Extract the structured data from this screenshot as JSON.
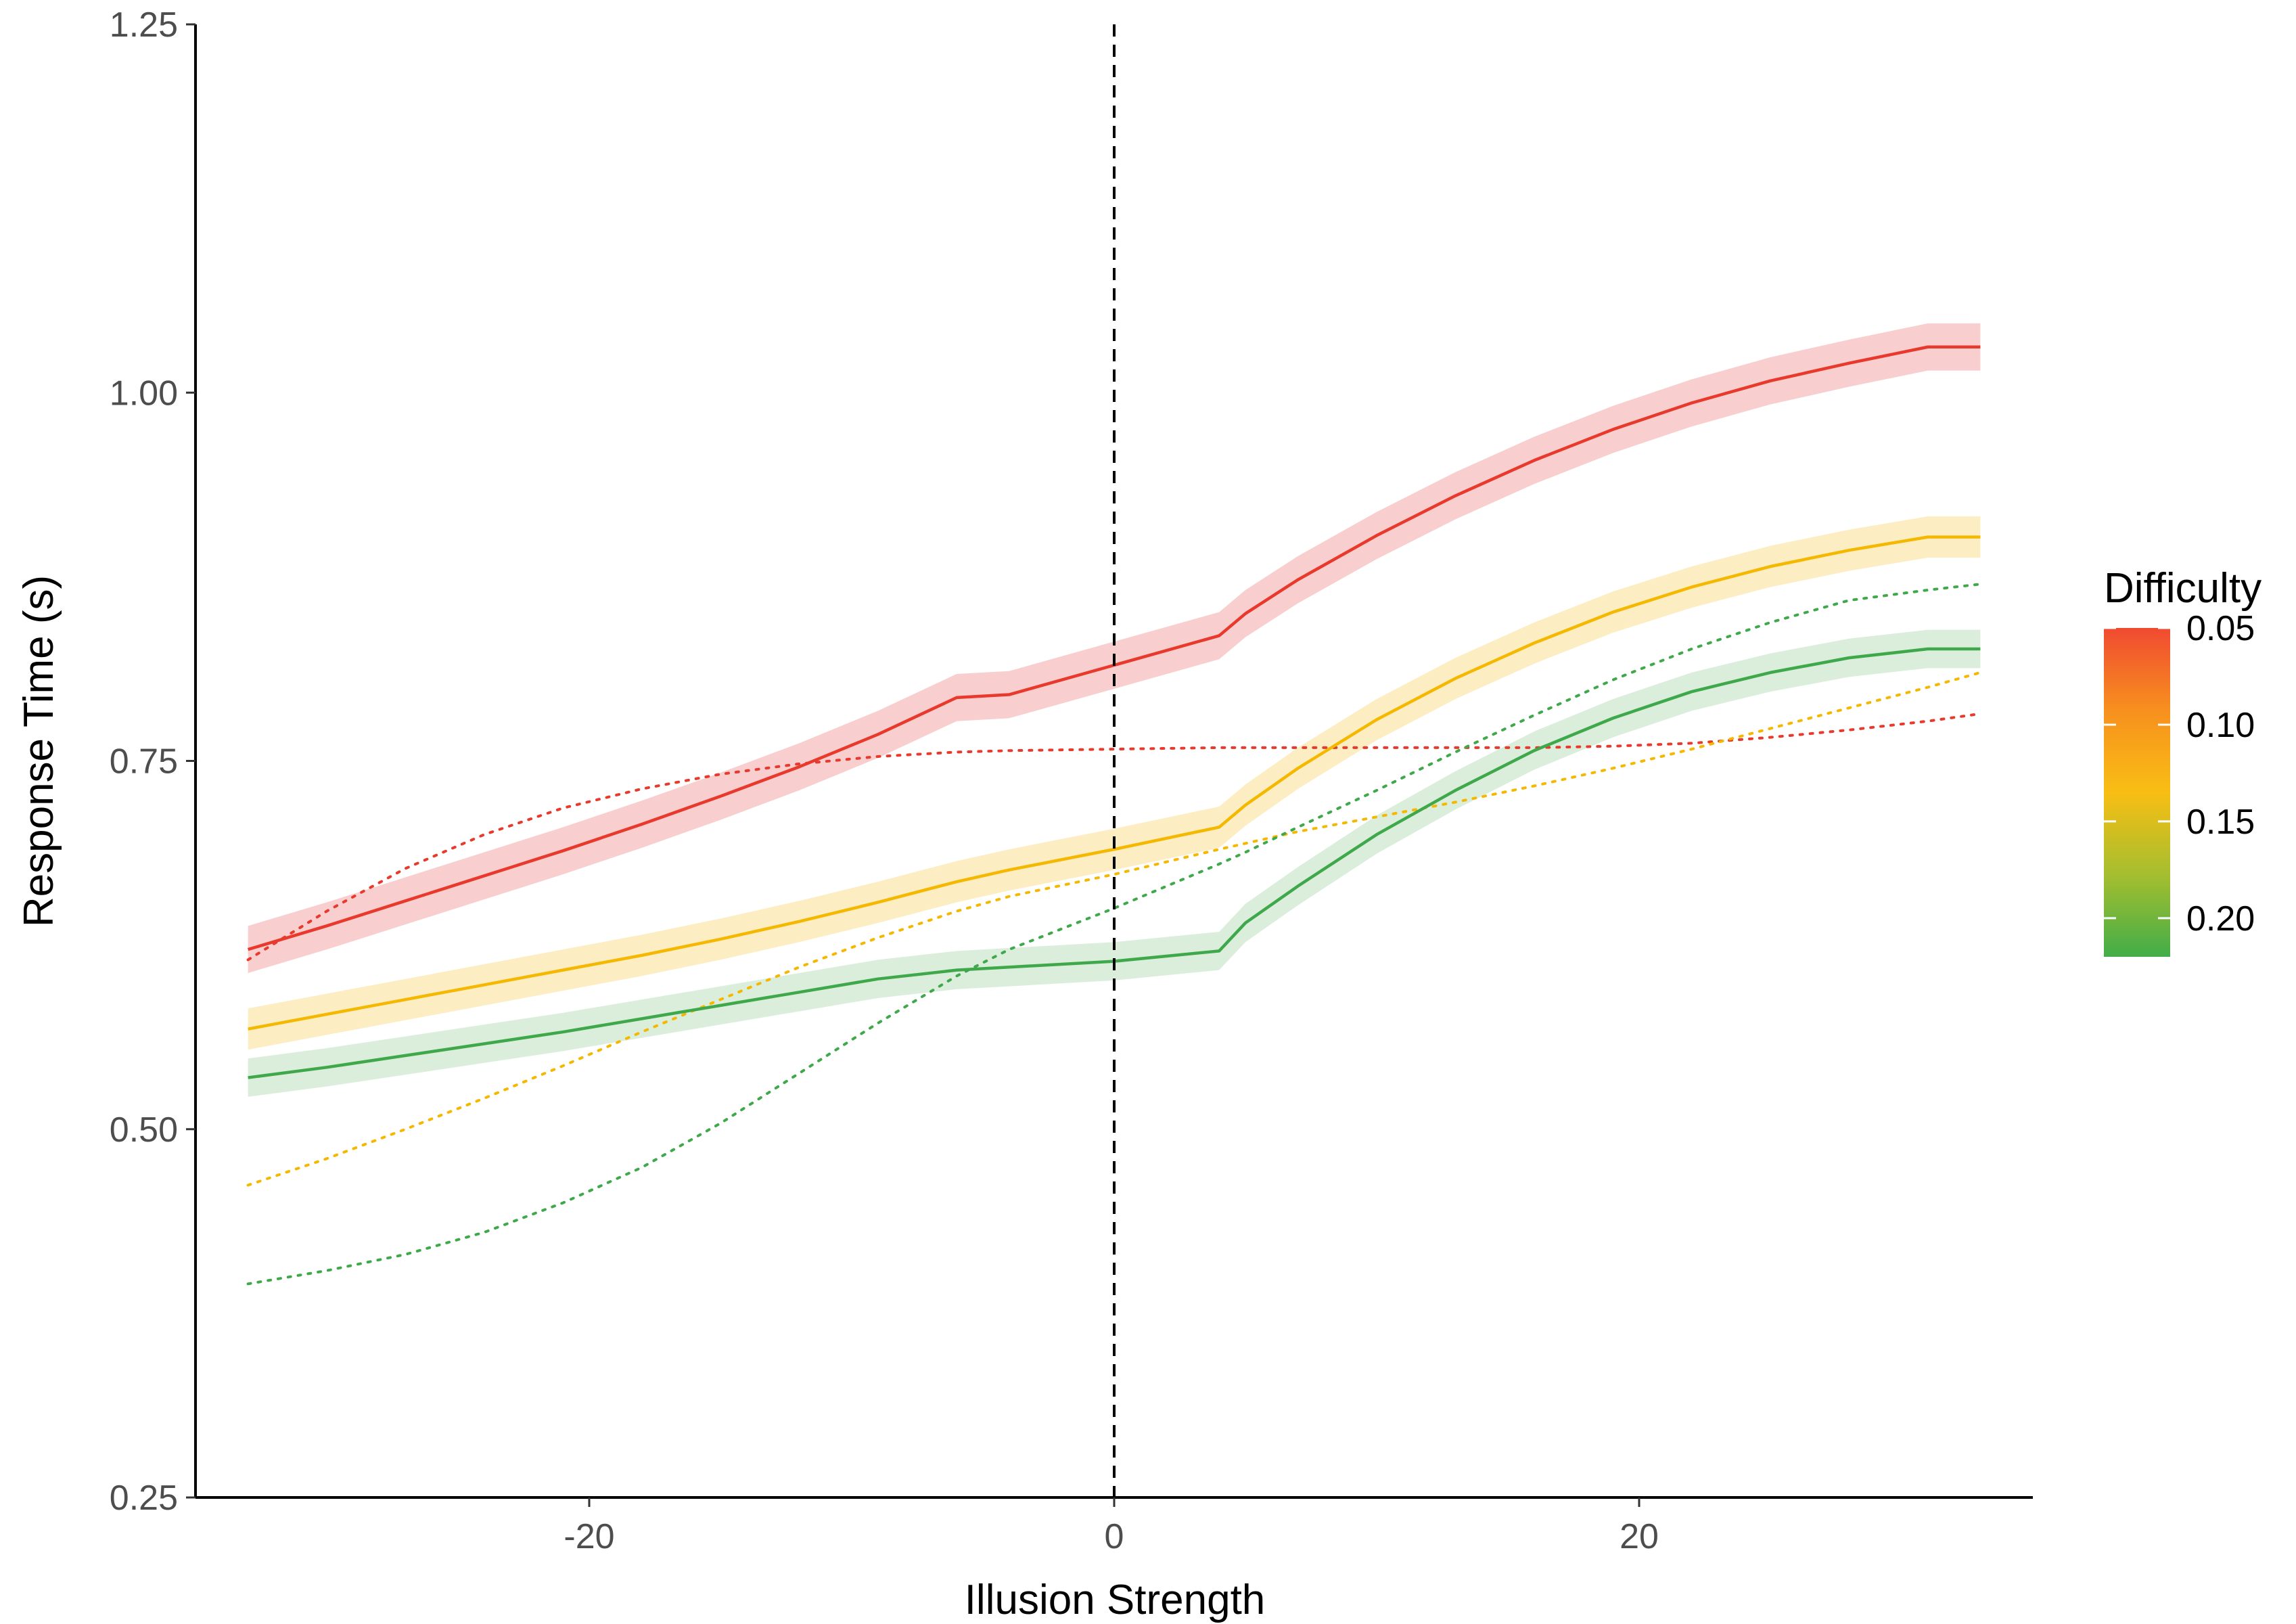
{
  "chart_data": {
    "type": "line",
    "title": "",
    "xlabel": "Illusion Strength",
    "ylabel": "Response Time (s)",
    "xlim": [
      -35,
      35
    ],
    "ylim": [
      0.25,
      1.25
    ],
    "x_ticks": [
      -20,
      0,
      20
    ],
    "x_tick_labels": [
      "-20",
      "0",
      "20"
    ],
    "y_ticks": [
      0.25,
      0.5,
      0.75,
      1.0,
      1.25
    ],
    "y_tick_labels": [
      "0.25",
      "0.50",
      "0.75",
      "1.00",
      "1.25"
    ],
    "grid": false,
    "reference_line": {
      "x": 0,
      "style": "dashed",
      "color": "#000000"
    },
    "legend": {
      "title": "Difficulty",
      "type": "colorbar",
      "placement": "right",
      "tick_labels": [
        "0.05",
        "0.10",
        "0.15",
        "0.20"
      ],
      "tick_values": [
        0.05,
        0.1,
        0.15,
        0.2
      ],
      "range": [
        0.05,
        0.22
      ],
      "colors": [
        "#F04A31",
        "#F7901E",
        "#F8BE14",
        "#A5BE2F",
        "#42AD48"
      ]
    },
    "x": [
      -33,
      -30,
      -27,
      -24,
      -21,
      -18,
      -15,
      -12,
      -9,
      -6,
      -4,
      0,
      4,
      5,
      7,
      10,
      13,
      16,
      19,
      22,
      25,
      28,
      31,
      33
    ],
    "series": [
      {
        "color": "#E8392C",
        "band_color": "#F7C6C6",
        "values": [
          0.622,
          0.638,
          0.655,
          0.672,
          0.689,
          0.707,
          0.726,
          0.746,
          0.768,
          0.793,
          0.795,
          0.815,
          0.835,
          0.85,
          0.873,
          0.903,
          0.93,
          0.954,
          0.975,
          0.993,
          1.008,
          1.02,
          1.031,
          1.031
        ],
        "band_half_width": 0.016,
        "reference_values": [
          0.615,
          0.648,
          0.677,
          0.7,
          0.718,
          0.731,
          0.741,
          0.748,
          0.753,
          0.756,
          0.757,
          0.758,
          0.759,
          0.759,
          0.759,
          0.759,
          0.759,
          0.759,
          0.76,
          0.762,
          0.766,
          0.771,
          0.777,
          0.782
        ]
      },
      {
        "color": "#F5B800",
        "band_color": "#FCEAB8",
        "values": [
          0.568,
          0.578,
          0.588,
          0.598,
          0.608,
          0.618,
          0.629,
          0.641,
          0.654,
          0.668,
          0.676,
          0.69,
          0.705,
          0.72,
          0.745,
          0.778,
          0.806,
          0.83,
          0.851,
          0.868,
          0.882,
          0.893,
          0.902,
          0.902
        ],
        "band_half_width": 0.014,
        "reference_values": [
          0.462,
          0.48,
          0.5,
          0.521,
          0.543,
          0.566,
          0.588,
          0.61,
          0.63,
          0.648,
          0.658,
          0.673,
          0.69,
          0.694,
          0.702,
          0.712,
          0.722,
          0.733,
          0.745,
          0.758,
          0.772,
          0.786,
          0.8,
          0.81
        ]
      },
      {
        "color": "#3FA84A",
        "band_color": "#D5EBD6",
        "values": [
          0.535,
          0.542,
          0.55,
          0.558,
          0.566,
          0.575,
          0.584,
          0.593,
          0.602,
          0.608,
          0.61,
          0.614,
          0.621,
          0.64,
          0.665,
          0.7,
          0.73,
          0.757,
          0.779,
          0.797,
          0.81,
          0.82,
          0.826,
          0.826
        ],
        "band_half_width": 0.013,
        "reference_values": [
          0.395,
          0.404,
          0.415,
          0.43,
          0.45,
          0.474,
          0.504,
          0.538,
          0.572,
          0.604,
          0.622,
          0.65,
          0.68,
          0.688,
          0.705,
          0.73,
          0.756,
          0.781,
          0.805,
          0.826,
          0.844,
          0.859,
          0.866,
          0.87
        ]
      }
    ]
  }
}
